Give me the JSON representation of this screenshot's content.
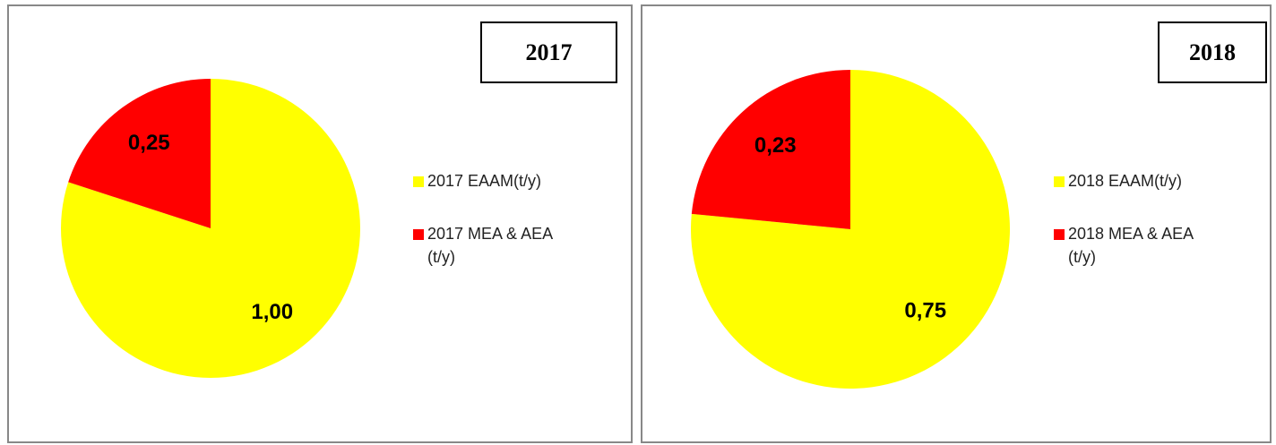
{
  "chart_data": [
    {
      "type": "pie",
      "title": "2017",
      "categories": [
        "2017 EAAM(t/y)",
        "2017 MEA & AEA (t/y)"
      ],
      "values": [
        1.0,
        0.25
      ],
      "value_labels": [
        "1,00",
        "0,25"
      ],
      "colors": [
        "#ffff00",
        "#ff0000"
      ]
    },
    {
      "type": "pie",
      "title": "2018",
      "categories": [
        "2018 EAAM(t/y)",
        "2018 MEA & AEA (t/y)"
      ],
      "values": [
        0.75,
        0.23
      ],
      "value_labels": [
        "0,75",
        "0,23"
      ],
      "colors": [
        "#ffff00",
        "#ff0000"
      ]
    }
  ]
}
